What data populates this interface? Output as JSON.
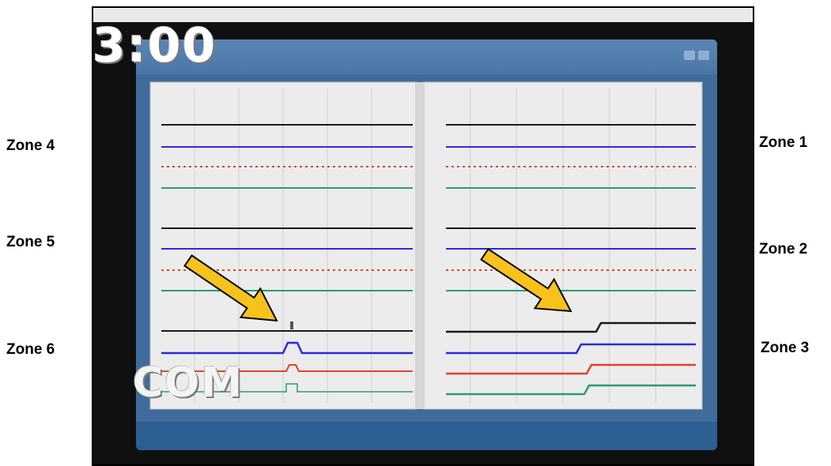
{
  "overlay": {
    "timer": "3:00",
    "mode_label": "COM"
  },
  "zones": {
    "left": [
      "Zone 4",
      "Zone 5",
      "Zone 6"
    ],
    "right": [
      "Zone 1",
      "Zone 2",
      "Zone 3"
    ]
  },
  "colors": {
    "trace_black": "#1a1a1a",
    "trace_blue": "#2a2ad8",
    "trace_red": "#e0442a",
    "trace_green": "#2a9a7a",
    "arrow": "#f7c21c",
    "screen_bg": "#3f6c9d",
    "panel_bg": "#ececec"
  },
  "icons": {
    "arrow": "yellow-diagonal-arrow"
  }
}
